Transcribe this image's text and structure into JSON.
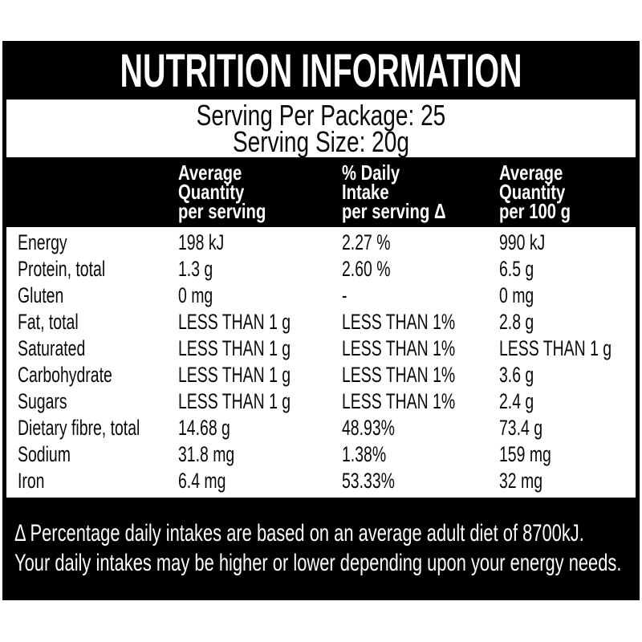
{
  "colors": {
    "label_background": "#000000",
    "panel_background": "#ffffff",
    "light_text": "#ffffff",
    "dark_text": "#0a0a0a"
  },
  "title": "NUTRITION INFORMATION",
  "serving": {
    "per_package": "Serving Per Package: 25",
    "size": "Serving Size: 20g"
  },
  "columns": [
    {
      "lines": [
        "Average",
        "Quantity",
        "per serving"
      ]
    },
    {
      "lines": [
        "% Daily",
        "Intake",
        "per serving Δ"
      ]
    },
    {
      "lines": [
        "Average",
        "Quantity",
        "per 100 g"
      ]
    }
  ],
  "rows": [
    {
      "nutrient": "Energy",
      "per_serving": "198 kJ",
      "daily_intake": "2.27 %",
      "per_100g": "990 kJ"
    },
    {
      "nutrient": "Protein, total",
      "per_serving": "1.3 g",
      "daily_intake": "2.60 %",
      "per_100g": "6.5 g"
    },
    {
      "nutrient": "Gluten",
      "per_serving": "0 mg",
      "daily_intake": "-",
      "per_100g": "0 mg"
    },
    {
      "nutrient": "Fat, total",
      "per_serving": "LESS THAN 1 g",
      "daily_intake": "LESS THAN 1%",
      "per_100g": "2.8 g"
    },
    {
      "nutrient": "Saturated",
      "per_serving": "LESS THAN 1 g",
      "daily_intake": "LESS THAN 1%",
      "per_100g": "LESS THAN 1 g"
    },
    {
      "nutrient": "Carbohydrate",
      "per_serving": "LESS THAN 1 g",
      "daily_intake": "LESS THAN 1%",
      "per_100g": "3.6 g"
    },
    {
      "nutrient": "Sugars",
      "per_serving": "LESS THAN 1 g",
      "daily_intake": "LESS THAN 1%",
      "per_100g": "2.4 g"
    },
    {
      "nutrient": "Dietary fibre, total",
      "per_serving": "14.68 g",
      "daily_intake": "48.93%",
      "per_100g": "73.4 g"
    },
    {
      "nutrient": "Sodium",
      "per_serving": "31.8 mg",
      "daily_intake": "1.38%",
      "per_100g": "159 mg"
    },
    {
      "nutrient": "Iron",
      "per_serving": "6.4 mg",
      "daily_intake": "53.33%",
      "per_100g": "32 mg"
    }
  ],
  "footnote": {
    "line1": "Δ Percentage daily intakes are based on an average adult diet of 8700kJ.",
    "line2": "Your daily intakes may be higher or lower depending upon your energy needs."
  }
}
